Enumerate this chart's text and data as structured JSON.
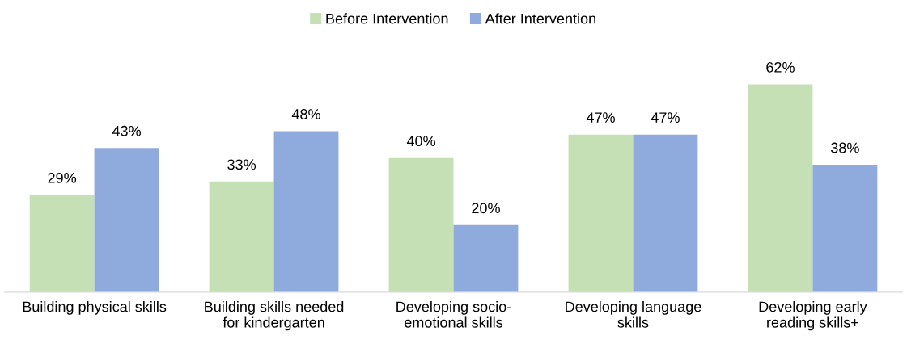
{
  "chart_data": {
    "type": "bar",
    "categories": [
      "Building physical skills",
      "Building skills needed\nfor kindergarten",
      "Developing socio-\nemotional skills",
      "Developing language\nskills",
      "Developing early\nreading skills+"
    ],
    "series": [
      {
        "name": "Before Intervention",
        "color": "#c5e0b4",
        "values": [
          29,
          33,
          40,
          47,
          62
        ],
        "value_labels": [
          "29%",
          "33%",
          "40%",
          "47%",
          "62%"
        ]
      },
      {
        "name": "After Intervention",
        "color": "#8faadc",
        "values": [
          43,
          48,
          20,
          47,
          38
        ],
        "value_labels": [
          "43%",
          "48%",
          "20%",
          "47%",
          "38%"
        ]
      }
    ],
    "legend": "top",
    "grid": false
  }
}
